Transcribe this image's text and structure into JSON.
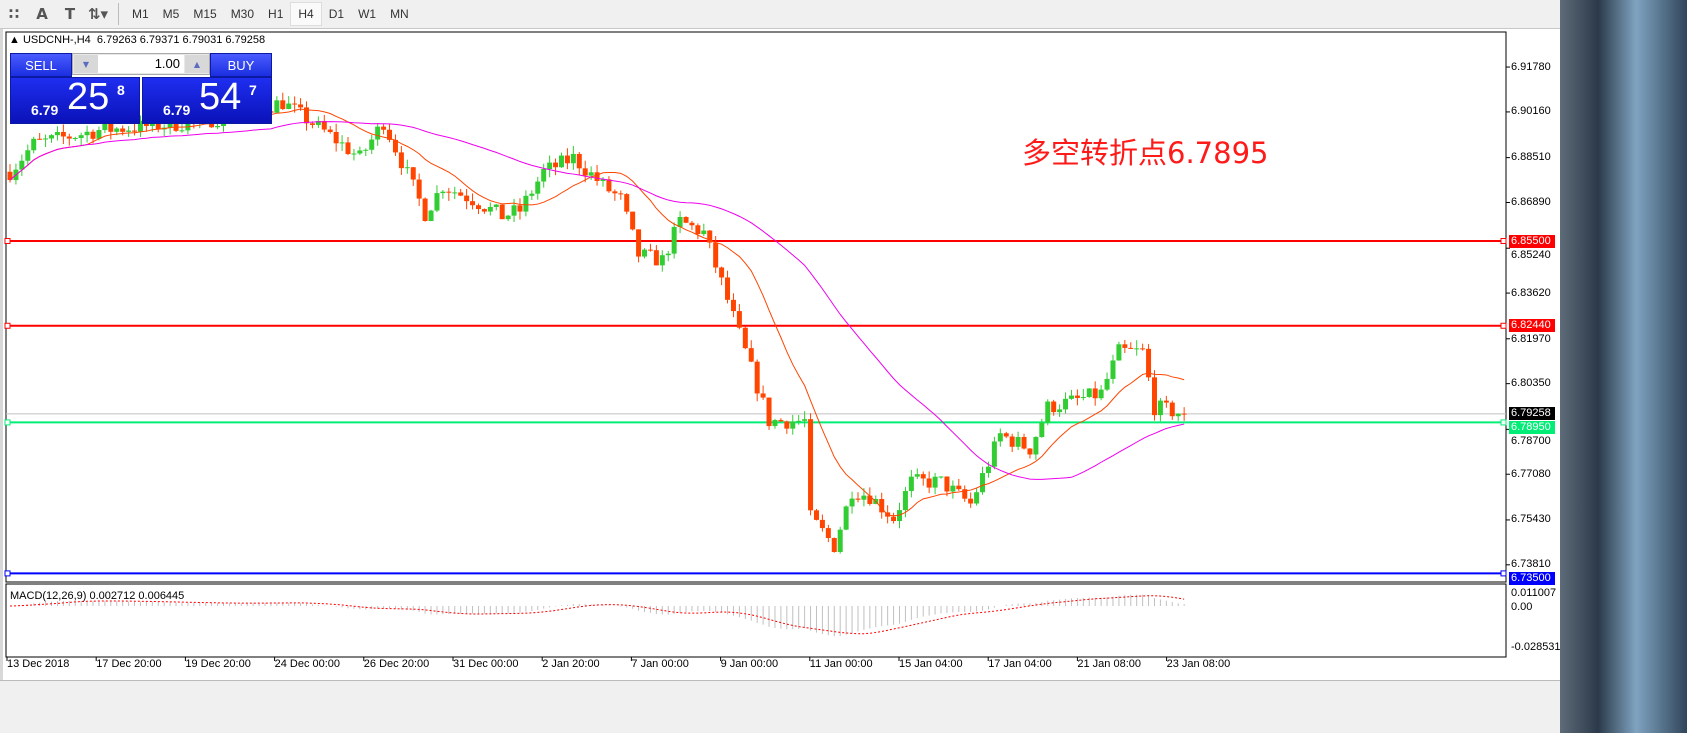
{
  "toolbar": {
    "icons": [
      "grid-font-icon",
      "text-A-icon",
      "text-box-icon",
      "arrows-dropdown-icon"
    ],
    "icon_glyphs": [
      "∷",
      "A",
      "T",
      "⇅▾"
    ],
    "timeframes": [
      "M1",
      "M5",
      "M15",
      "M30",
      "H1",
      "H4",
      "D1",
      "W1",
      "MN"
    ],
    "active_timeframe": "H4"
  },
  "header": {
    "symbol": "USDCNH-,H4",
    "ohlc": "6.79263 6.79371 6.79031 6.79258"
  },
  "trade_panel": {
    "sell_label": "SELL",
    "buy_label": "BUY",
    "lot": "1.00",
    "sell": {
      "prefix": "6.79",
      "big": "25",
      "sup": "8"
    },
    "buy": {
      "prefix": "6.79",
      "big": "54",
      "sup": "7"
    }
  },
  "annotation": "多空转折点6.7895",
  "price_axis": [
    "6.91780",
    "6.90160",
    "6.88510",
    "6.86890",
    "6.85240",
    "6.83620",
    "6.81970",
    "6.80350",
    "6.78700",
    "6.77080",
    "6.75430",
    "6.73810"
  ],
  "levels": [
    {
      "price": "6.85500",
      "color": "#ff0000"
    },
    {
      "price": "6.82440",
      "color": "#ff0000"
    },
    {
      "price": "6.78950",
      "color": "#00ee76"
    },
    {
      "price": "6.73500",
      "color": "#0000ff"
    }
  ],
  "current_price": {
    "price": "6.79258",
    "color": "#000000"
  },
  "time_axis": [
    "13 Dec 2018",
    "17 Dec 20:00",
    "19 Dec 20:00",
    "24 Dec 00:00",
    "26 Dec 20:00",
    "31 Dec 00:00",
    "2 Jan 20:00",
    "7 Jan 00:00",
    "9 Jan 00:00",
    "11 Jan 00:00",
    "15 Jan 04:00",
    "17 Jan 04:00",
    "21 Jan 08:00",
    "23 Jan 08:00"
  ],
  "macd": {
    "label": "MACD(12,26,9) 0.002712 0.006445",
    "axis": [
      "0.011007",
      "0.00",
      "-0.028531"
    ]
  },
  "colors": {
    "bull": "#32cd32",
    "bear": "#ff4500",
    "ma_fast": "#ff4500",
    "ma_slow": "#ee00ee",
    "macd_signal": "#ff0000",
    "macd_hist": "#c0c0c0"
  },
  "chart_data": {
    "type": "candlestick",
    "symbol": "USDCNH",
    "timeframe": "H4",
    "close_path": [
      [
        0,
        6.88
      ],
      [
        4,
        6.89
      ],
      [
        15,
        6.895
      ],
      [
        32,
        6.898
      ],
      [
        46,
        6.905
      ],
      [
        54,
        6.893
      ],
      [
        59,
        6.885
      ],
      [
        63,
        6.898
      ],
      [
        70,
        6.865
      ],
      [
        73,
        6.875
      ],
      [
        78,
        6.87
      ],
      [
        83,
        6.864
      ],
      [
        86,
        6.866
      ],
      [
        90,
        6.88
      ],
      [
        95,
        6.885
      ],
      [
        100,
        6.875
      ],
      [
        103,
        6.87
      ],
      [
        106,
        6.85
      ],
      [
        110,
        6.848
      ],
      [
        113,
        6.862
      ],
      [
        117,
        6.858
      ],
      [
        120,
        6.84
      ],
      [
        124,
        6.815
      ],
      [
        128,
        6.79
      ],
      [
        134,
        6.79
      ],
      [
        135,
        6.755
      ],
      [
        139,
        6.745
      ],
      [
        142,
        6.765
      ],
      [
        145,
        6.763
      ],
      [
        149,
        6.755
      ],
      [
        152,
        6.768
      ],
      [
        157,
        6.768
      ],
      [
        162,
        6.76
      ],
      [
        167,
        6.785
      ],
      [
        172,
        6.78
      ],
      [
        175,
        6.795
      ],
      [
        179,
        6.797
      ],
      [
        184,
        6.8
      ],
      [
        187,
        6.815
      ],
      [
        191,
        6.815
      ],
      [
        193,
        6.795
      ],
      [
        198,
        6.7926
      ]
    ],
    "y_range": [
      6.733,
      6.922
    ]
  }
}
